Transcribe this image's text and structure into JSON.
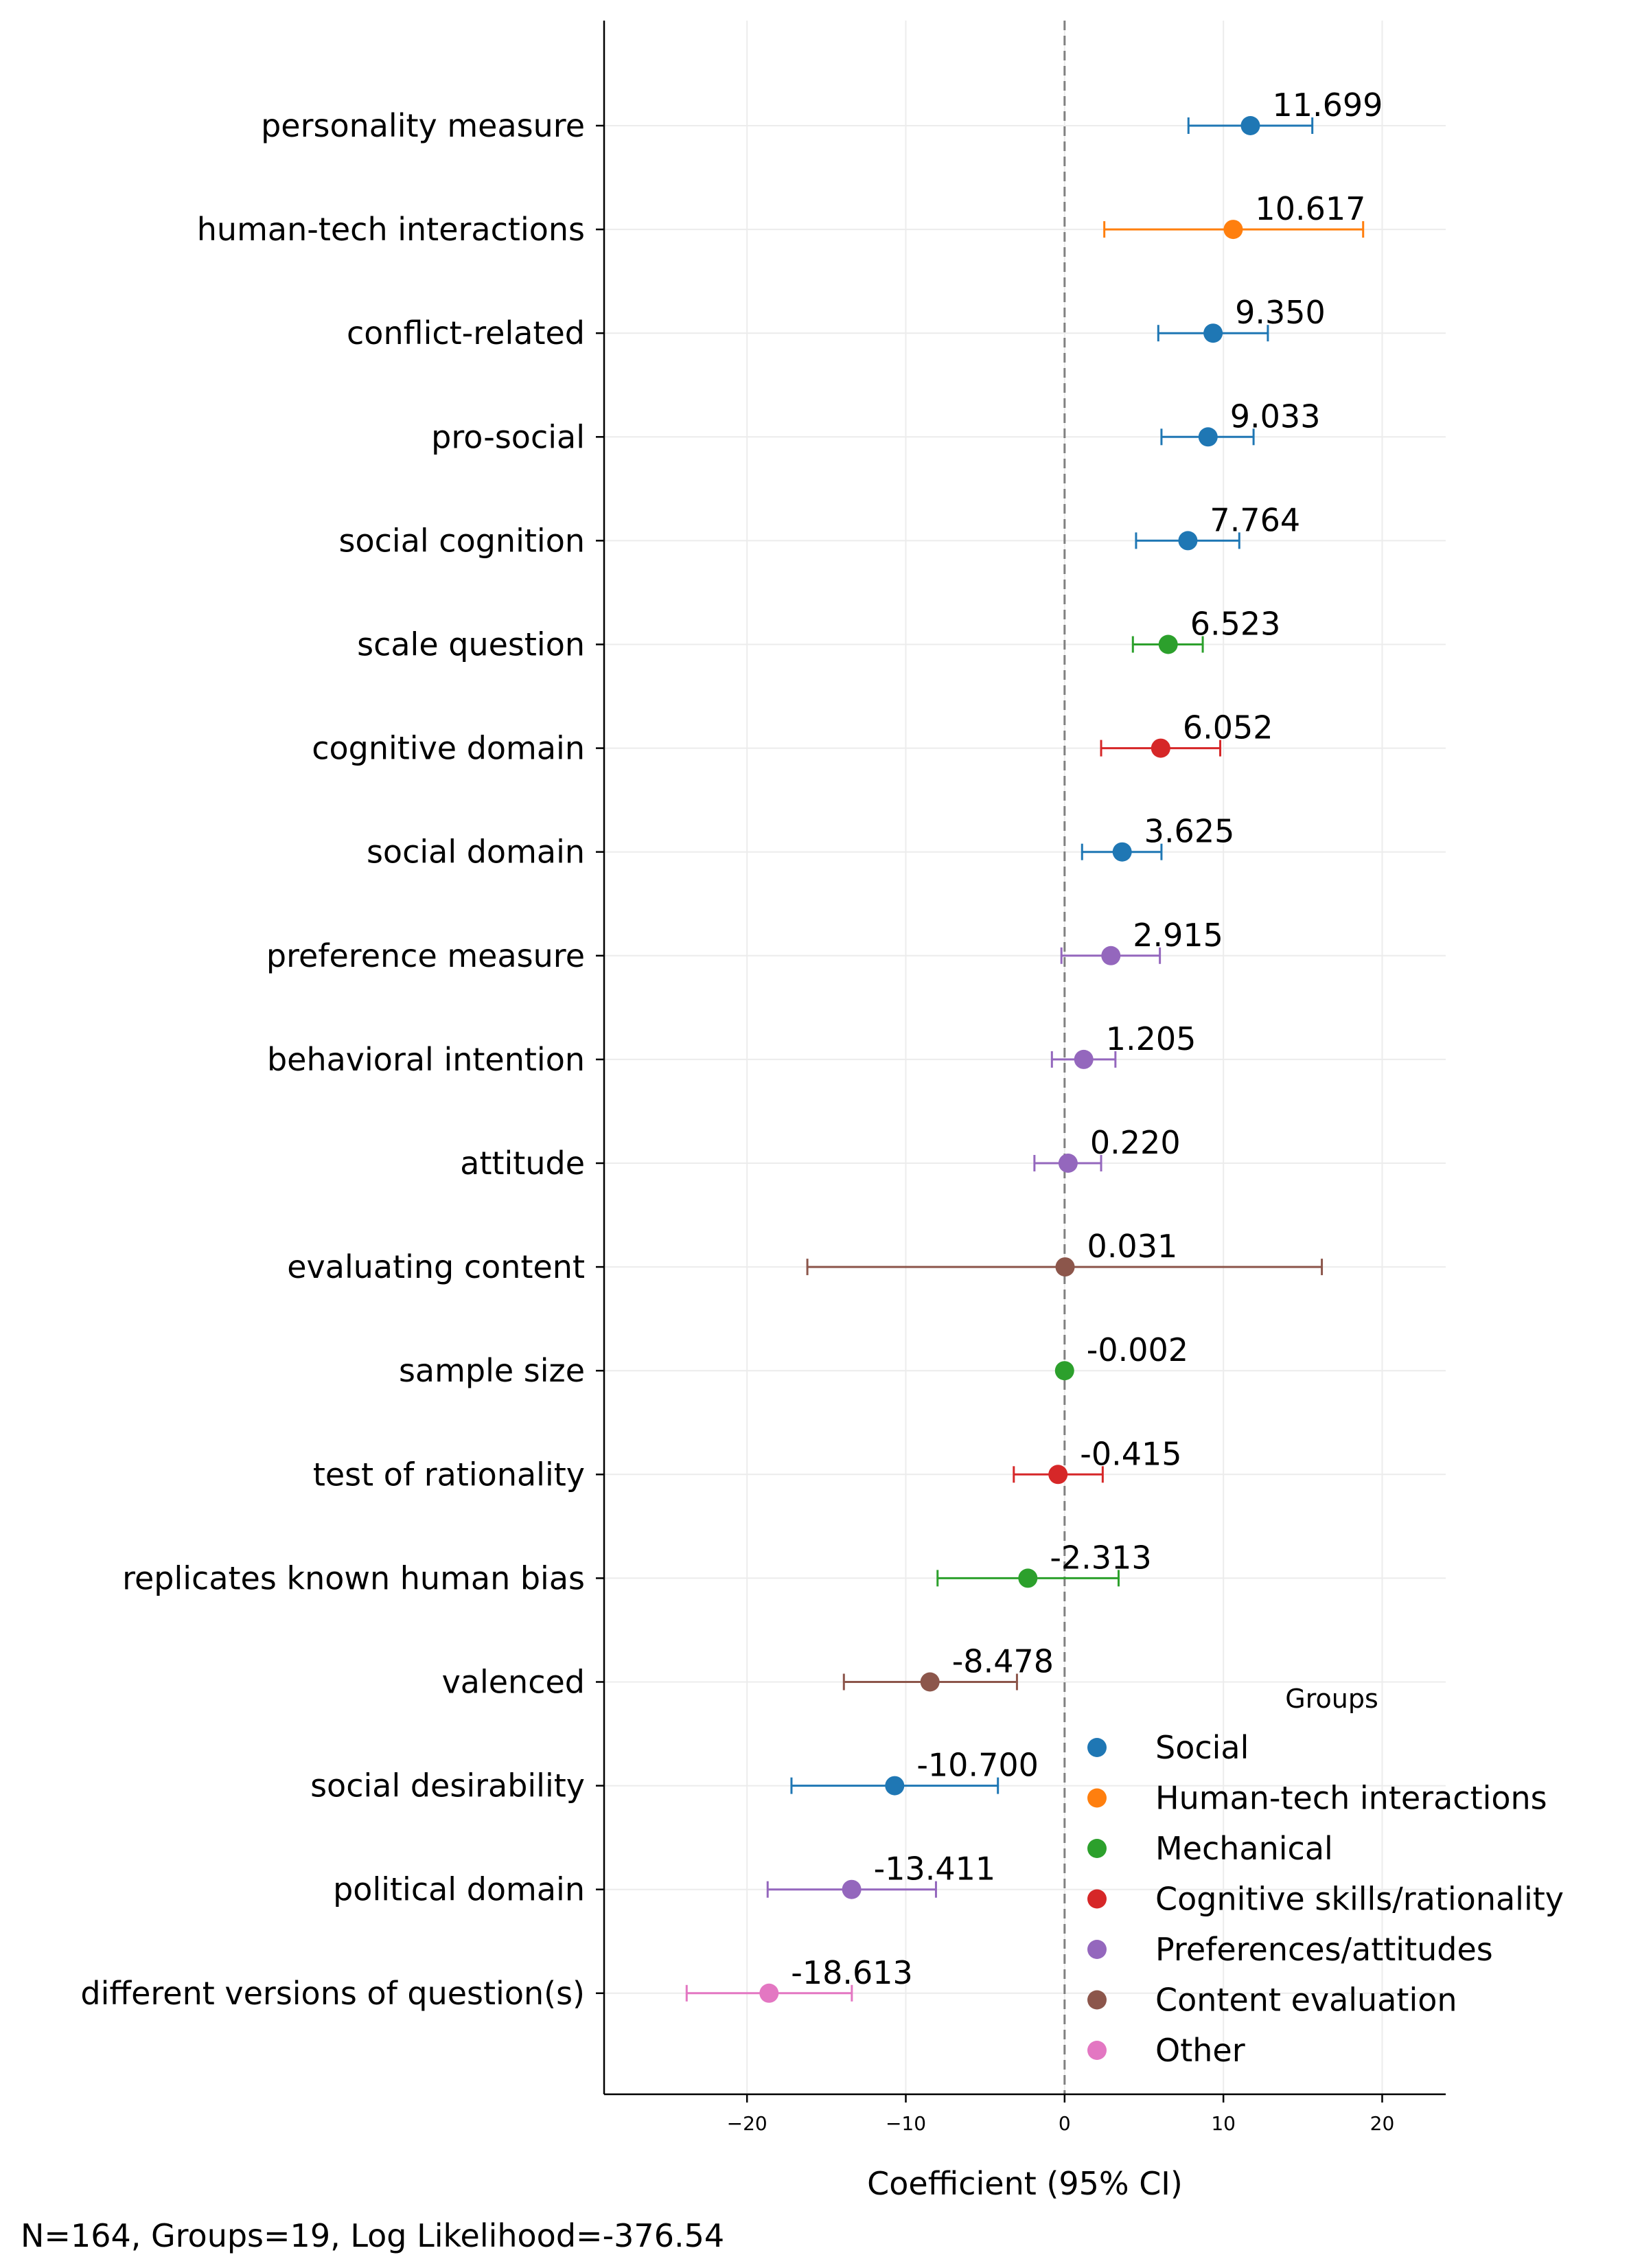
{
  "chart_data": {
    "type": "scatter",
    "subtype": "coefficient-plot-with-error-bars",
    "title": "",
    "xlabel": "Coefficient (95% CI)",
    "ylabel": "",
    "xlim": [
      -29,
      24
    ],
    "xticks": [
      -20,
      -10,
      0,
      10,
      20
    ],
    "xtick_labels": [
      "−20",
      "−10",
      "0",
      "10",
      "20"
    ],
    "reference_line_x": 0,
    "grid": true,
    "legend_title": "Groups",
    "legend_placement": "lower-right",
    "groups": [
      {
        "name": "Social",
        "color": "#1f77b4"
      },
      {
        "name": "Human-tech interactions",
        "color": "#ff7f0e"
      },
      {
        "name": "Mechanical",
        "color": "#2ca02c"
      },
      {
        "name": "Cognitive skills/rationality",
        "color": "#d62728"
      },
      {
        "name": "Preferences/attitudes",
        "color": "#9467bd"
      },
      {
        "name": "Content evaluation",
        "color": "#8c564b"
      },
      {
        "name": "Other",
        "color": "#e377c2"
      }
    ],
    "points": [
      {
        "label": "personality measure",
        "value": 11.699,
        "value_label": "11.699",
        "ci": [
          7.8,
          15.6
        ],
        "group": "Social"
      },
      {
        "label": "human-tech interactions",
        "value": 10.617,
        "value_label": "10.617",
        "ci": [
          2.5,
          18.8
        ],
        "group": "Human-tech interactions"
      },
      {
        "label": "conflict-related",
        "value": 9.35,
        "value_label": "9.350",
        "ci": [
          5.9,
          12.8
        ],
        "group": "Social"
      },
      {
        "label": "pro-social",
        "value": 9.033,
        "value_label": "9.033",
        "ci": [
          6.1,
          11.9
        ],
        "group": "Social"
      },
      {
        "label": "social cognition",
        "value": 7.764,
        "value_label": "7.764",
        "ci": [
          4.5,
          11.0
        ],
        "group": "Social"
      },
      {
        "label": "scale question",
        "value": 6.523,
        "value_label": "6.523",
        "ci": [
          4.3,
          8.7
        ],
        "group": "Mechanical"
      },
      {
        "label": "cognitive domain",
        "value": 6.052,
        "value_label": "6.052",
        "ci": [
          2.3,
          9.8
        ],
        "group": "Cognitive skills/rationality"
      },
      {
        "label": "social domain",
        "value": 3.625,
        "value_label": "3.625",
        "ci": [
          1.1,
          6.1
        ],
        "group": "Social"
      },
      {
        "label": "preference measure",
        "value": 2.915,
        "value_label": "2.915",
        "ci": [
          -0.2,
          6.0
        ],
        "group": "Preferences/attitudes"
      },
      {
        "label": "behavioral intention",
        "value": 1.205,
        "value_label": "1.205",
        "ci": [
          -0.8,
          3.2
        ],
        "group": "Preferences/attitudes"
      },
      {
        "label": "attitude",
        "value": 0.22,
        "value_label": "0.220",
        "ci": [
          -1.9,
          2.3
        ],
        "group": "Preferences/attitudes"
      },
      {
        "label": "evaluating content",
        "value": 0.031,
        "value_label": "0.031",
        "ci": [
          -16.2,
          16.2
        ],
        "group": "Content evaluation"
      },
      {
        "label": "sample size",
        "value": -0.002,
        "value_label": "-0.002",
        "ci": [
          -0.01,
          0.01
        ],
        "group": "Mechanical"
      },
      {
        "label": "test of rationality",
        "value": -0.415,
        "value_label": "-0.415",
        "ci": [
          -3.2,
          2.4
        ],
        "group": "Cognitive skills/rationality"
      },
      {
        "label": "replicates known human bias",
        "value": -2.313,
        "value_label": "-2.313",
        "ci": [
          -8.0,
          3.4
        ],
        "group": "Mechanical"
      },
      {
        "label": "valenced",
        "value": -8.478,
        "value_label": "-8.478",
        "ci": [
          -13.9,
          -3.0
        ],
        "group": "Content evaluation"
      },
      {
        "label": "social desirability",
        "value": -10.7,
        "value_label": "-10.700",
        "ci": [
          -17.2,
          -4.2
        ],
        "group": "Social"
      },
      {
        "label": "political domain",
        "value": -13.411,
        "value_label": "-13.411",
        "ci": [
          -18.7,
          -8.1
        ],
        "group": "Preferences/attitudes"
      },
      {
        "label": "different versions of question(s)",
        "value": -18.613,
        "value_label": "-18.613",
        "ci": [
          -23.8,
          -13.4
        ],
        "group": "Other"
      }
    ],
    "footnote": "N=164, Groups=19, Log Likelihood=-376.54"
  }
}
